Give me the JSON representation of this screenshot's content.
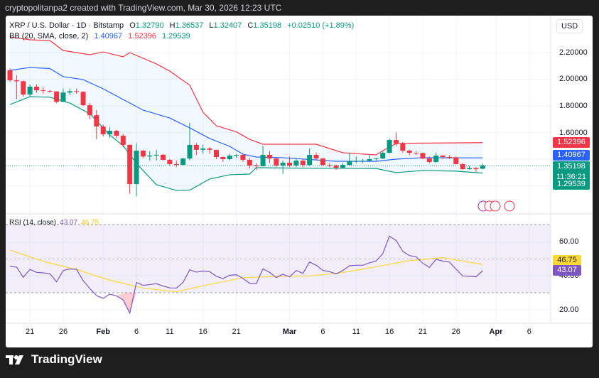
{
  "header": {
    "attribution": "cryptopolitanpa2 created with TradingView.com, Mar 30, 2026 12:23 UTC"
  },
  "legend": {
    "symbol": "XRP / U.S. Dollar · 1D · Bitstamp",
    "o_label": "O",
    "o": "1.32790",
    "h_label": "H",
    "h": "1.36537",
    "l_label": "L",
    "l": "1.32407",
    "c_label": "C",
    "c": "1.35198",
    "change": "+0.02510 (+1.89%)",
    "bb_label": "BB (20, SMA, close, 2)",
    "bb_basis": "1.40967",
    "bb_upper": "1.52396",
    "bb_lower": "1.29539",
    "rsi_label": "RSI (14, close)",
    "rsi_value": "43.07",
    "rsi_ma": "46.75"
  },
  "currency": "USD",
  "price_axis": [
    "2.20000",
    "2.00000",
    "1.80000",
    "1.60000"
  ],
  "price_tags": {
    "upper": "1.52396",
    "basis": "1.40967",
    "last": "1.35198",
    "countdown": "11:36:21",
    "lower": "1.29539"
  },
  "rsi_axis": [
    "60.00",
    "40.00",
    "20.00"
  ],
  "rsi_tags": {
    "ma": "46.75",
    "rsi": "43.07"
  },
  "time_axis": [
    {
      "label": "21",
      "date": "2026-01-21"
    },
    {
      "label": "26",
      "date": "2026-01-26"
    },
    {
      "label": "Feb",
      "date": "2026-02-01",
      "bold": true
    },
    {
      "label": "6",
      "date": "2026-02-06"
    },
    {
      "label": "11",
      "date": "2026-02-11"
    },
    {
      "label": "16",
      "date": "2026-02-16"
    },
    {
      "label": "21",
      "date": "2026-02-21"
    },
    {
      "label": "Mar",
      "date": "2026-03-01",
      "bold": true
    },
    {
      "label": "6",
      "date": "2026-03-06"
    },
    {
      "label": "11",
      "date": "2026-03-11"
    },
    {
      "label": "16",
      "date": "2026-03-16"
    },
    {
      "label": "21",
      "date": "2026-03-21"
    },
    {
      "label": "26",
      "date": "2026-03-26"
    },
    {
      "label": "Apr",
      "date": "2026-04-01",
      "bold": true
    },
    {
      "label": "6",
      "date": "2026-04-06"
    }
  ],
  "brand": "TradingView",
  "colors": {
    "up": "#089981",
    "down": "#f23645",
    "bb_basis": "#2962ff",
    "bb_upper": "#f23645",
    "bb_lower": "#089981",
    "rsi": "#7e57c2",
    "rsi_ma": "#fdd835"
  },
  "chart_data": {
    "type": "candlestick",
    "price_range": [
      1.1,
      2.35
    ],
    "rsi_range": [
      10,
      75
    ],
    "rsi_bands": [
      70,
      30
    ],
    "candles_ohlc": [
      [
        "2026-01-18",
        2.067,
        2.08,
        1.98,
        1.992
      ],
      [
        "2026-01-19",
        1.992,
        2.03,
        1.85,
        1.985
      ],
      [
        "2026-01-20",
        1.985,
        1.99,
        1.87,
        1.885
      ],
      [
        "2026-01-21",
        1.885,
        1.96,
        1.87,
        1.944
      ],
      [
        "2026-01-22",
        1.944,
        1.96,
        1.9,
        1.917
      ],
      [
        "2026-01-23",
        1.917,
        1.94,
        1.89,
        1.912
      ],
      [
        "2026-01-24",
        1.912,
        1.92,
        1.9,
        1.908
      ],
      [
        "2026-01-25",
        1.908,
        1.91,
        1.82,
        1.83
      ],
      [
        "2026-01-26",
        1.83,
        1.93,
        1.83,
        1.9
      ],
      [
        "2026-01-27",
        1.9,
        1.93,
        1.88,
        1.91
      ],
      [
        "2026-01-28",
        1.91,
        1.93,
        1.89,
        1.905
      ],
      [
        "2026-01-29",
        1.905,
        1.91,
        1.8,
        1.805
      ],
      [
        "2026-01-30",
        1.805,
        1.82,
        1.7,
        1.73
      ],
      [
        "2026-01-31",
        1.73,
        1.77,
        1.55,
        1.645
      ],
      [
        "2026-02-01",
        1.645,
        1.66,
        1.57,
        1.587
      ],
      [
        "2026-02-02",
        1.587,
        1.64,
        1.56,
        1.613
      ],
      [
        "2026-02-03",
        1.613,
        1.62,
        1.56,
        1.576
      ],
      [
        "2026-02-04",
        1.576,
        1.59,
        1.49,
        1.507
      ],
      [
        "2026-02-05",
        1.507,
        1.51,
        1.14,
        1.213
      ],
      [
        "2026-02-06",
        1.213,
        1.52,
        1.12,
        1.464
      ],
      [
        "2026-02-07",
        1.464,
        1.47,
        1.41,
        1.42
      ],
      [
        "2026-02-08",
        1.42,
        1.46,
        1.39,
        1.427
      ],
      [
        "2026-02-09",
        1.427,
        1.47,
        1.39,
        1.433
      ],
      [
        "2026-02-10",
        1.433,
        1.44,
        1.39,
        1.395
      ],
      [
        "2026-02-11",
        1.395,
        1.4,
        1.35,
        1.363
      ],
      [
        "2026-02-12",
        1.363,
        1.39,
        1.34,
        1.357
      ],
      [
        "2026-02-13",
        1.357,
        1.41,
        1.35,
        1.405
      ],
      [
        "2026-02-14",
        1.405,
        1.672,
        1.39,
        1.507
      ],
      [
        "2026-02-15",
        1.507,
        1.52,
        1.43,
        1.47
      ],
      [
        "2026-02-16",
        1.47,
        1.51,
        1.44,
        1.48
      ],
      [
        "2026-02-17",
        1.48,
        1.49,
        1.44,
        1.47
      ],
      [
        "2026-02-18",
        1.47,
        1.47,
        1.4,
        1.416
      ],
      [
        "2026-02-19",
        1.416,
        1.42,
        1.38,
        1.4
      ],
      [
        "2026-02-20",
        1.4,
        1.44,
        1.39,
        1.427
      ],
      [
        "2026-02-21",
        1.427,
        1.44,
        1.41,
        1.432
      ],
      [
        "2026-02-22",
        1.432,
        1.44,
        1.38,
        1.395
      ],
      [
        "2026-02-23",
        1.395,
        1.41,
        1.33,
        1.352
      ],
      [
        "2026-02-24",
        1.352,
        1.37,
        1.32,
        1.347
      ],
      [
        "2026-02-25",
        1.347,
        1.5,
        1.345,
        1.432
      ],
      [
        "2026-02-26",
        1.432,
        1.46,
        1.37,
        1.405
      ],
      [
        "2026-02-27",
        1.405,
        1.41,
        1.34,
        1.352
      ],
      [
        "2026-02-28",
        1.352,
        1.39,
        1.29,
        1.373
      ],
      [
        "2026-03-01",
        1.373,
        1.42,
        1.34,
        1.352
      ],
      [
        "2026-03-02",
        1.352,
        1.41,
        1.34,
        1.389
      ],
      [
        "2026-03-03",
        1.389,
        1.4,
        1.34,
        1.357
      ],
      [
        "2026-03-04",
        1.357,
        1.48,
        1.35,
        1.432
      ],
      [
        "2026-03-05",
        1.432,
        1.45,
        1.39,
        1.405
      ],
      [
        "2026-03-06",
        1.405,
        1.41,
        1.35,
        1.357
      ],
      [
        "2026-03-07",
        1.357,
        1.37,
        1.34,
        1.352
      ],
      [
        "2026-03-08",
        1.352,
        1.36,
        1.32,
        1.336
      ],
      [
        "2026-03-09",
        1.336,
        1.37,
        1.33,
        1.357
      ],
      [
        "2026-03-10",
        1.357,
        1.45,
        1.35,
        1.384
      ],
      [
        "2026-03-11",
        1.384,
        1.42,
        1.37,
        1.386
      ],
      [
        "2026-03-12",
        1.386,
        1.4,
        1.37,
        1.388
      ],
      [
        "2026-03-13",
        1.388,
        1.43,
        1.38,
        1.4
      ],
      [
        "2026-03-14",
        1.4,
        1.41,
        1.39,
        1.405
      ],
      [
        "2026-03-15",
        1.405,
        1.46,
        1.4,
        1.448
      ],
      [
        "2026-03-16",
        1.448,
        1.555,
        1.44,
        1.544
      ],
      [
        "2026-03-17",
        1.544,
        1.6,
        1.5,
        1.517
      ],
      [
        "2026-03-18",
        1.517,
        1.53,
        1.45,
        1.464
      ],
      [
        "2026-03-19",
        1.464,
        1.47,
        1.43,
        1.448
      ],
      [
        "2026-03-20",
        1.448,
        1.46,
        1.43,
        1.446
      ],
      [
        "2026-03-21",
        1.446,
        1.45,
        1.4,
        1.405
      ],
      [
        "2026-03-22",
        1.405,
        1.42,
        1.37,
        1.379
      ],
      [
        "2026-03-23",
        1.379,
        1.45,
        1.37,
        1.427
      ],
      [
        "2026-03-24",
        1.427,
        1.43,
        1.4,
        1.416
      ],
      [
        "2026-03-25",
        1.416,
        1.43,
        1.4,
        1.414
      ],
      [
        "2026-03-26",
        1.414,
        1.42,
        1.36,
        1.363
      ],
      [
        "2026-03-27",
        1.363,
        1.37,
        1.32,
        1.325
      ],
      [
        "2026-03-28",
        1.325,
        1.35,
        1.32,
        1.333
      ],
      [
        "2026-03-29",
        1.333,
        1.34,
        1.305,
        1.325
      ],
      [
        "2026-03-30",
        1.3279,
        1.36537,
        1.32407,
        1.35198
      ]
    ],
    "bb_upper": [
      [
        "2026-01-18",
        2.317
      ],
      [
        "2026-01-21",
        2.296
      ],
      [
        "2026-01-24",
        2.29
      ],
      [
        "2026-01-26",
        2.216
      ],
      [
        "2026-01-30",
        2.184
      ],
      [
        "2026-02-01",
        2.205
      ],
      [
        "2026-02-04",
        2.168
      ],
      [
        "2026-02-05",
        2.2
      ],
      [
        "2026-02-09",
        2.115
      ],
      [
        "2026-02-11",
        2.061
      ],
      [
        "2026-02-14",
        1.955
      ],
      [
        "2026-02-16",
        1.752
      ],
      [
        "2026-02-18",
        1.651
      ],
      [
        "2026-02-21",
        1.605
      ],
      [
        "2026-02-23",
        1.549
      ],
      [
        "2026-02-25",
        1.512
      ],
      [
        "2026-03-05",
        1.512
      ],
      [
        "2026-03-09",
        1.448
      ],
      [
        "2026-03-14",
        1.432
      ],
      [
        "2026-03-15",
        1.464
      ],
      [
        "2026-03-17",
        1.517
      ],
      [
        "2026-03-20",
        1.52
      ],
      [
        "2026-03-30",
        1.52396
      ]
    ],
    "bb_basis": [
      [
        "2026-01-18",
        2.067
      ],
      [
        "2026-01-21",
        2.088
      ],
      [
        "2026-01-24",
        2.08
      ],
      [
        "2026-01-26",
        2.019
      ],
      [
        "2026-01-29",
        1.997
      ],
      [
        "2026-02-01",
        1.928
      ],
      [
        "2026-02-04",
        1.848
      ],
      [
        "2026-02-07",
        1.768
      ],
      [
        "2026-02-11",
        1.709
      ],
      [
        "2026-02-14",
        1.635
      ],
      [
        "2026-02-17",
        1.555
      ],
      [
        "2026-02-20",
        1.496
      ],
      [
        "2026-02-22",
        1.437
      ],
      [
        "2026-02-24",
        1.416
      ],
      [
        "2026-02-28",
        1.411
      ],
      [
        "2026-03-08",
        1.384
      ],
      [
        "2026-03-14",
        1.384
      ],
      [
        "2026-03-17",
        1.4
      ],
      [
        "2026-03-21",
        1.411
      ],
      [
        "2026-03-30",
        1.40967
      ]
    ],
    "bb_lower": [
      [
        "2026-01-18",
        1.81
      ],
      [
        "2026-01-21",
        1.869
      ],
      [
        "2026-01-24",
        1.865
      ],
      [
        "2026-01-27",
        1.821
      ],
      [
        "2026-01-30",
        1.741
      ],
      [
        "2026-02-02",
        1.581
      ],
      [
        "2026-02-04",
        1.501
      ],
      [
        "2026-02-06",
        1.368
      ],
      [
        "2026-02-09",
        1.208
      ],
      [
        "2026-02-12",
        1.165
      ],
      [
        "2026-02-14",
        1.167
      ],
      [
        "2026-02-17",
        1.251
      ],
      [
        "2026-02-20",
        1.283
      ],
      [
        "2026-02-23",
        1.288
      ],
      [
        "2026-02-24",
        1.336
      ],
      [
        "2026-03-05",
        1.331
      ],
      [
        "2026-03-14",
        1.33
      ],
      [
        "2026-03-17",
        1.299
      ],
      [
        "2026-03-21",
        1.315
      ],
      [
        "2026-03-26",
        1.31
      ],
      [
        "2026-03-30",
        1.29539
      ]
    ],
    "rsi": [
      45.6,
      45.2,
      39.2,
      43.8,
      42.1,
      41.8,
      41.3,
      36.5,
      43.2,
      44.1,
      43.9,
      37.2,
      32.5,
      28.4,
      26.7,
      29.2,
      28.2,
      25.8,
      18,
      36.1,
      34.4,
      34.9,
      35.4,
      34,
      32.9,
      32.8,
      36.1,
      43.6,
      42.2,
      42.9,
      42.5,
      39.8,
      38.4,
      40.4,
      40.7,
      38.5,
      35.6,
      35.4,
      44.2,
      42.1,
      39,
      41,
      39.4,
      43.2,
      41.5,
      48.2,
      46.3,
      43.3,
      42.5,
      41.2,
      43.2,
      46,
      46.3,
      46.3,
      47.7,
      48.8,
      53.2,
      63.5,
      61,
      54.5,
      52,
      51.3,
      47.5,
      45,
      49.8,
      48.8,
      48.2,
      44,
      40,
      39.8,
      39.5,
      43.07
    ],
    "rsi_ma": [
      [
        "2026-01-18",
        55.3
      ],
      [
        "2026-01-23",
        48.6
      ],
      [
        "2026-01-28",
        43.7
      ],
      [
        "2026-02-02",
        37.5
      ],
      [
        "2026-02-07",
        32.8
      ],
      [
        "2026-02-12",
        30.6
      ],
      [
        "2026-02-17",
        35
      ],
      [
        "2026-02-22",
        38.9
      ],
      [
        "2026-02-27",
        39.7
      ],
      [
        "2026-03-04",
        40
      ],
      [
        "2026-03-09",
        42
      ],
      [
        "2026-03-14",
        45.4
      ],
      [
        "2026-03-19",
        49
      ],
      [
        "2026-03-24",
        50.8
      ],
      [
        "2026-03-30",
        46.75
      ]
    ]
  }
}
